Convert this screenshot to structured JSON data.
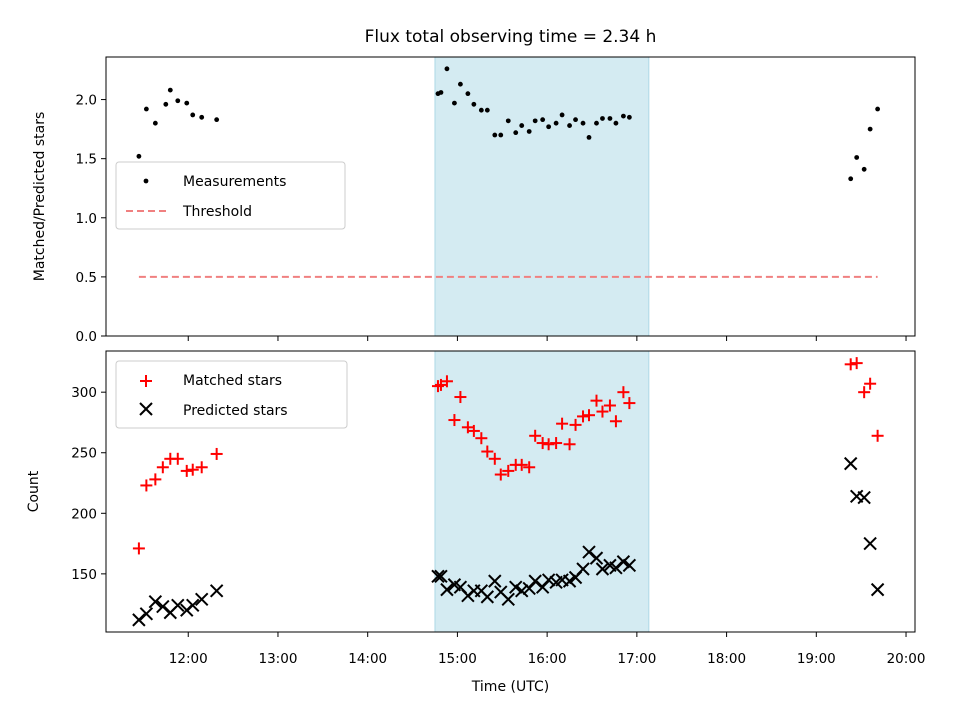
{
  "chart_data": {
    "title": "Flux total observing time = 2.34 h",
    "xlabel": "Time (UTC)",
    "x_ticks": [
      "12:00",
      "13:00",
      "14:00",
      "15:00",
      "16:00",
      "17:00",
      "18:00",
      "19:00",
      "20:00"
    ],
    "xlim": [
      "11:05",
      "20:06"
    ],
    "shaded_region": {
      "start": "14:45",
      "end": "17:08",
      "color": "#add8e6"
    },
    "panels": [
      {
        "type": "scatter",
        "ylabel": "Matched/Predicted stars",
        "ylim": [
          0,
          2.36
        ],
        "y_ticks": [
          "0.0",
          "0.5",
          "1.0",
          "1.5",
          "2.0"
        ],
        "legend": {
          "position": "center-left",
          "entries": [
            "Measurements",
            "Threshold"
          ]
        },
        "series": [
          {
            "name": "Measurements",
            "marker": "dot",
            "color": "#000000",
            "points": [
              [
                "11:27",
                1.52
              ],
              [
                "11:32",
                1.92
              ],
              [
                "11:38",
                1.8
              ],
              [
                "11:45",
                1.96
              ],
              [
                "11:48",
                2.08
              ],
              [
                "11:53",
                1.99
              ],
              [
                "11:59",
                1.97
              ],
              [
                "12:03",
                1.87
              ],
              [
                "12:09",
                1.85
              ],
              [
                "12:19",
                1.83
              ],
              [
                "14:47",
                2.05
              ],
              [
                "14:49",
                2.06
              ],
              [
                "14:53",
                2.26
              ],
              [
                "14:58",
                1.97
              ],
              [
                "15:02",
                2.13
              ],
              [
                "15:07",
                2.05
              ],
              [
                "15:11",
                1.96
              ],
              [
                "15:16",
                1.91
              ],
              [
                "15:20",
                1.91
              ],
              [
                "15:25",
                1.7
              ],
              [
                "15:29",
                1.7
              ],
              [
                "15:34",
                1.82
              ],
              [
                "15:39",
                1.72
              ],
              [
                "15:43",
                1.78
              ],
              [
                "15:48",
                1.73
              ],
              [
                "15:52",
                1.82
              ],
              [
                "15:57",
                1.83
              ],
              [
                "16:01",
                1.77
              ],
              [
                "16:06",
                1.8
              ],
              [
                "16:10",
                1.87
              ],
              [
                "16:15",
                1.78
              ],
              [
                "16:19",
                1.83
              ],
              [
                "16:24",
                1.8
              ],
              [
                "16:28",
                1.68
              ],
              [
                "16:33",
                1.8
              ],
              [
                "16:37",
                1.84
              ],
              [
                "16:42",
                1.84
              ],
              [
                "16:46",
                1.8
              ],
              [
                "16:51",
                1.86
              ],
              [
                "16:55",
                1.85
              ],
              [
                "19:23",
                1.33
              ],
              [
                "19:27",
                1.51
              ],
              [
                "19:32",
                1.41
              ],
              [
                "19:36",
                1.75
              ],
              [
                "19:41",
                1.92
              ]
            ]
          },
          {
            "name": "Threshold",
            "type": "line",
            "style": "dashed",
            "color": "#f08080",
            "points": [
              [
                "11:27",
                0.5
              ],
              [
                "19:41",
                0.5
              ]
            ]
          }
        ]
      },
      {
        "type": "scatter",
        "ylabel": "Count",
        "ylim": [
          102,
          334
        ],
        "y_ticks": [
          "150",
          "200",
          "250",
          "300"
        ],
        "legend": {
          "position": "top-left",
          "entries": [
            "Matched stars",
            "Predicted stars"
          ]
        },
        "series": [
          {
            "name": "Matched stars",
            "marker": "plus",
            "color": "#ff0000",
            "points": [
              [
                "11:27",
                171
              ],
              [
                "11:32",
                223
              ],
              [
                "11:38",
                228
              ],
              [
                "11:43",
                238
              ],
              [
                "11:48",
                245
              ],
              [
                "11:53",
                245
              ],
              [
                "11:59",
                235
              ],
              [
                "12:03",
                236
              ],
              [
                "12:09",
                238
              ],
              [
                "12:19",
                249
              ],
              [
                "14:47",
                305
              ],
              [
                "14:49",
                306
              ],
              [
                "14:53",
                309
              ],
              [
                "14:58",
                277
              ],
              [
                "15:02",
                296
              ],
              [
                "15:07",
                271
              ],
              [
                "15:11",
                268
              ],
              [
                "15:16",
                262
              ],
              [
                "15:20",
                251
              ],
              [
                "15:25",
                245
              ],
              [
                "15:29",
                232
              ],
              [
                "15:34",
                235
              ],
              [
                "15:39",
                240
              ],
              [
                "15:43",
                240
              ],
              [
                "15:48",
                238
              ],
              [
                "15:52",
                264
              ],
              [
                "15:57",
                258
              ],
              [
                "16:01",
                257
              ],
              [
                "16:06",
                258
              ],
              [
                "16:10",
                274
              ],
              [
                "16:15",
                257
              ],
              [
                "16:19",
                273
              ],
              [
                "16:24",
                280
              ],
              [
                "16:28",
                281
              ],
              [
                "16:33",
                293
              ],
              [
                "16:37",
                284
              ],
              [
                "16:42",
                289
              ],
              [
                "16:46",
                276
              ],
              [
                "16:51",
                300
              ],
              [
                "16:55",
                291
              ],
              [
                "19:23",
                323
              ],
              [
                "19:27",
                324
              ],
              [
                "19:32",
                300
              ],
              [
                "19:36",
                307
              ],
              [
                "19:41",
                264
              ]
            ]
          },
          {
            "name": "Predicted stars",
            "marker": "x",
            "color": "#000000",
            "points": [
              [
                "11:27",
                112
              ],
              [
                "11:32",
                117
              ],
              [
                "11:38",
                127
              ],
              [
                "11:43",
                123
              ],
              [
                "11:48",
                118
              ],
              [
                "11:53",
                124
              ],
              [
                "11:59",
                120
              ],
              [
                "12:03",
                124
              ],
              [
                "12:09",
                129
              ],
              [
                "12:19",
                136
              ],
              [
                "14:47",
                148
              ],
              [
                "14:49",
                148
              ],
              [
                "14:53",
                137
              ],
              [
                "14:58",
                141
              ],
              [
                "15:02",
                139
              ],
              [
                "15:07",
                132
              ],
              [
                "15:11",
                136
              ],
              [
                "15:16",
                136
              ],
              [
                "15:20",
                131
              ],
              [
                "15:25",
                144
              ],
              [
                "15:29",
                135
              ],
              [
                "15:34",
                129
              ],
              [
                "15:39",
                139
              ],
              [
                "15:43",
                136
              ],
              [
                "15:48",
                138
              ],
              [
                "15:52",
                144
              ],
              [
                "15:57",
                139
              ],
              [
                "16:01",
                145
              ],
              [
                "16:06",
                143
              ],
              [
                "16:10",
                145
              ],
              [
                "16:15",
                144
              ],
              [
                "16:19",
                147
              ],
              [
                "16:24",
                154
              ],
              [
                "16:28",
                168
              ],
              [
                "16:33",
                163
              ],
              [
                "16:37",
                154
              ],
              [
                "16:42",
                157
              ],
              [
                "16:46",
                155
              ],
              [
                "16:51",
                160
              ],
              [
                "16:55",
                157
              ],
              [
                "19:23",
                241
              ],
              [
                "19:27",
                214
              ],
              [
                "19:32",
                213
              ],
              [
                "19:36",
                175
              ],
              [
                "19:41",
                137
              ]
            ]
          }
        ]
      }
    ]
  }
}
